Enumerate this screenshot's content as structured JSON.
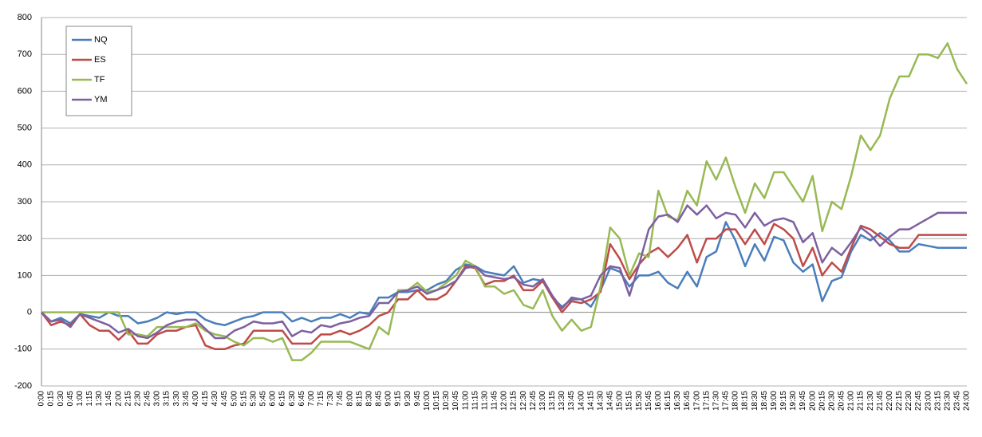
{
  "chart_data": {
    "type": "line",
    "categories": [
      "0:00",
      "0:15",
      "0:30",
      "0:45",
      "1:00",
      "1:15",
      "1:30",
      "1:45",
      "2:00",
      "2:15",
      "2:30",
      "2:45",
      "3:00",
      "3:15",
      "3:30",
      "3:45",
      "4:00",
      "4:15",
      "4:30",
      "4:45",
      "5:00",
      "5:15",
      "5:30",
      "5:45",
      "6:00",
      "6:15",
      "6:30",
      "6:45",
      "7:00",
      "7:15",
      "7:30",
      "7:45",
      "8:00",
      "8:15",
      "8:30",
      "8:45",
      "9:00",
      "9:15",
      "9:30",
      "9:45",
      "10:00",
      "10:15",
      "10:30",
      "10:45",
      "11:00",
      "11:15",
      "11:30",
      "11:45",
      "12:00",
      "12:15",
      "12:30",
      "12:45",
      "13:00",
      "13:15",
      "13:30",
      "13:45",
      "14:00",
      "14:15",
      "14:30",
      "14:45",
      "15:00",
      "15:15",
      "15:30",
      "15:45",
      "16:00",
      "16:15",
      "16:30",
      "16:45",
      "17:00",
      "17:15",
      "17:30",
      "17:45",
      "18:00",
      "18:15",
      "18:30",
      "18:45",
      "19:00",
      "19:15",
      "19:30",
      "19:45",
      "20:00",
      "20:15",
      "20:30",
      "20:45",
      "21:00",
      "21:15",
      "21:30",
      "21:45",
      "22:00",
      "22:15",
      "22:30",
      "22:45",
      "23:00",
      "23:15",
      "23:30",
      "23:45",
      "24:00"
    ],
    "series": [
      {
        "name": "NQ",
        "color": "#4a7ebb",
        "values": [
          0,
          -25,
          -15,
          -30,
          -5,
          -10,
          -15,
          0,
          -10,
          -10,
          -30,
          -25,
          -15,
          0,
          -5,
          0,
          0,
          -20,
          -30,
          -35,
          -25,
          -15,
          -10,
          0,
          0,
          0,
          -25,
          -15,
          -25,
          -15,
          -15,
          -5,
          -15,
          0,
          -5,
          40,
          40,
          55,
          55,
          60,
          60,
          75,
          85,
          115,
          130,
          125,
          110,
          105,
          100,
          125,
          80,
          90,
          85,
          40,
          15,
          35,
          35,
          15,
          60,
          120,
          110,
          70,
          100,
          100,
          110,
          80,
          65,
          110,
          70,
          150,
          165,
          245,
          195,
          125,
          185,
          140,
          205,
          195,
          135,
          110,
          130,
          30,
          85,
          95,
          165,
          210,
          195,
          215,
          195,
          165,
          165,
          185,
          180,
          175,
          175,
          175,
          175
        ]
      },
      {
        "name": "ES",
        "color": "#be4b48",
        "values": [
          0,
          -35,
          -25,
          -35,
          -5,
          -35,
          -50,
          -50,
          -75,
          -50,
          -85,
          -85,
          -60,
          -50,
          -50,
          -40,
          -35,
          -90,
          -100,
          -100,
          -90,
          -85,
          -50,
          -50,
          -50,
          -50,
          -85,
          -85,
          -85,
          -60,
          -60,
          -50,
          -60,
          -50,
          -35,
          -10,
          0,
          35,
          35,
          60,
          35,
          35,
          50,
          85,
          125,
          120,
          75,
          85,
          85,
          100,
          60,
          60,
          85,
          40,
          0,
          30,
          25,
          35,
          55,
          185,
          145,
          90,
          130,
          160,
          175,
          150,
          175,
          210,
          135,
          200,
          200,
          225,
          225,
          185,
          225,
          185,
          240,
          225,
          200,
          125,
          175,
          100,
          135,
          110,
          175,
          235,
          225,
          205,
          185,
          175,
          175,
          210,
          210,
          210,
          210,
          210,
          210
        ]
      },
      {
        "name": "TF",
        "color": "#98b954",
        "values": [
          0,
          0,
          0,
          0,
          0,
          0,
          0,
          0,
          0,
          -60,
          -60,
          -65,
          -40,
          -40,
          -40,
          -40,
          -30,
          -50,
          -60,
          -65,
          -80,
          -90,
          -70,
          -70,
          -80,
          -70,
          -130,
          -130,
          -110,
          -80,
          -80,
          -80,
          -80,
          -90,
          -100,
          -40,
          -60,
          60,
          60,
          80,
          55,
          60,
          80,
          100,
          140,
          125,
          70,
          70,
          50,
          60,
          20,
          10,
          60,
          -10,
          -50,
          -20,
          -50,
          -40,
          70,
          230,
          200,
          100,
          160,
          150,
          330,
          260,
          250,
          330,
          290,
          410,
          360,
          420,
          340,
          270,
          350,
          310,
          380,
          380,
          340,
          300,
          370,
          220,
          300,
          280,
          370,
          480,
          440,
          480,
          580,
          640,
          640,
          700,
          700,
          690,
          730,
          660,
          620
        ]
      },
      {
        "name": "YM",
        "color": "#7d60a0",
        "values": [
          0,
          -25,
          -20,
          -40,
          -5,
          -15,
          -25,
          -35,
          -55,
          -45,
          -65,
          -70,
          -55,
          -35,
          -25,
          -20,
          -20,
          -45,
          -70,
          -70,
          -50,
          -40,
          -25,
          -30,
          -30,
          -25,
          -65,
          -50,
          -55,
          -35,
          -40,
          -30,
          -25,
          -15,
          -10,
          25,
          25,
          55,
          60,
          70,
          50,
          60,
          70,
          85,
          120,
          125,
          100,
          95,
          90,
          95,
          75,
          70,
          90,
          45,
          10,
          40,
          35,
          45,
          100,
          125,
          120,
          45,
          130,
          225,
          260,
          265,
          245,
          290,
          265,
          290,
          255,
          270,
          265,
          230,
          270,
          235,
          250,
          255,
          245,
          190,
          215,
          135,
          175,
          155,
          190,
          230,
          210,
          180,
          205,
          225,
          225,
          240,
          255,
          270,
          270,
          270,
          270
        ]
      }
    ],
    "ylim": [
      -200,
      800
    ],
    "yticks": [
      -200,
      -100,
      0,
      100,
      200,
      300,
      400,
      500,
      600,
      700,
      800
    ],
    "grid": true,
    "legend": "upper-left"
  }
}
